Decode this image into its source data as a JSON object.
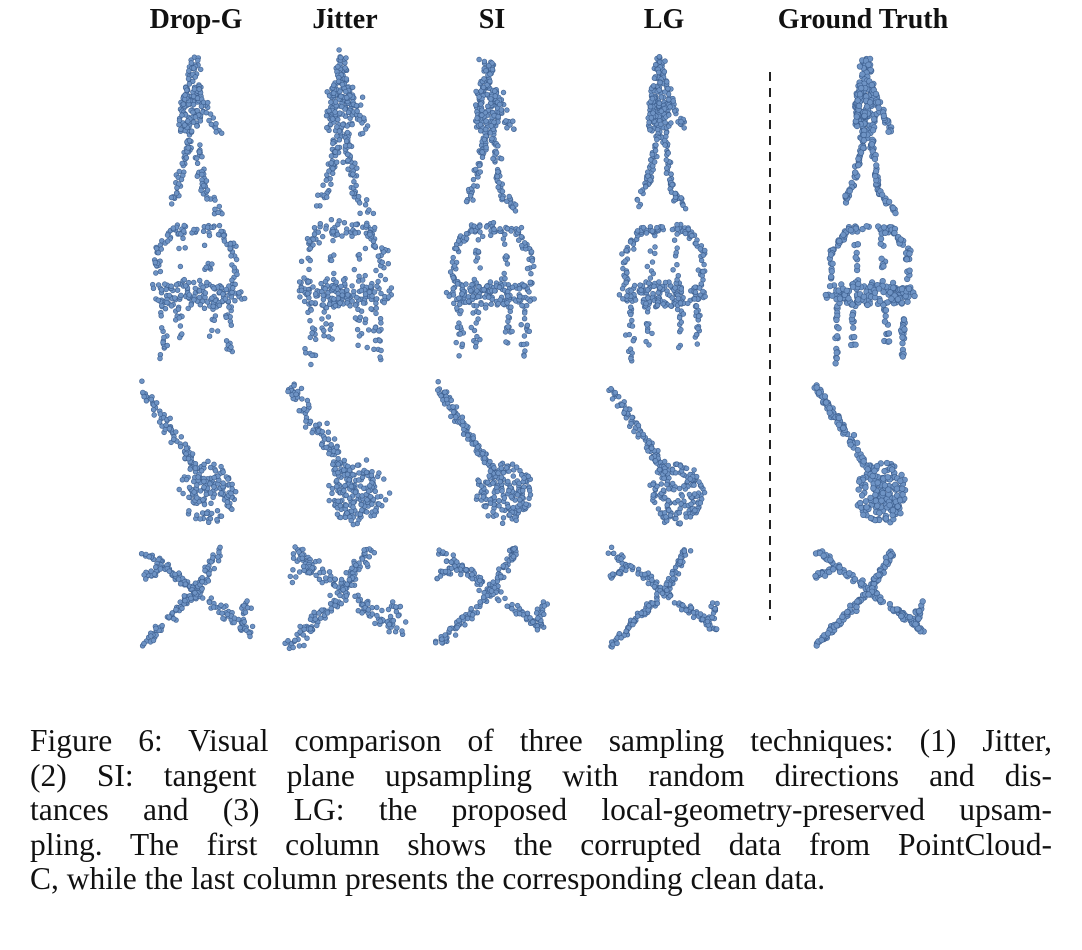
{
  "figure": {
    "columns": [
      "Drop-G",
      "Jitter",
      "SI",
      "LG",
      "Ground Truth"
    ],
    "rows": [
      "person",
      "chair",
      "guitar",
      "airplane"
    ],
    "point_color": "#6e93c4",
    "point_edge_color": "#3d5f8f"
  },
  "caption": {
    "lines": [
      "Figure 6: Visual comparison of three sampling techniques: (1) Jitter,",
      "(2) SI: tangent plane upsampling with random directions and dis-",
      "tances and (3) LG: the proposed local-geometry-preserved upsam-",
      "pling. The first column shows the corrupted data from PointCloud-",
      "C, while the last column presents the corresponding clean data."
    ]
  }
}
